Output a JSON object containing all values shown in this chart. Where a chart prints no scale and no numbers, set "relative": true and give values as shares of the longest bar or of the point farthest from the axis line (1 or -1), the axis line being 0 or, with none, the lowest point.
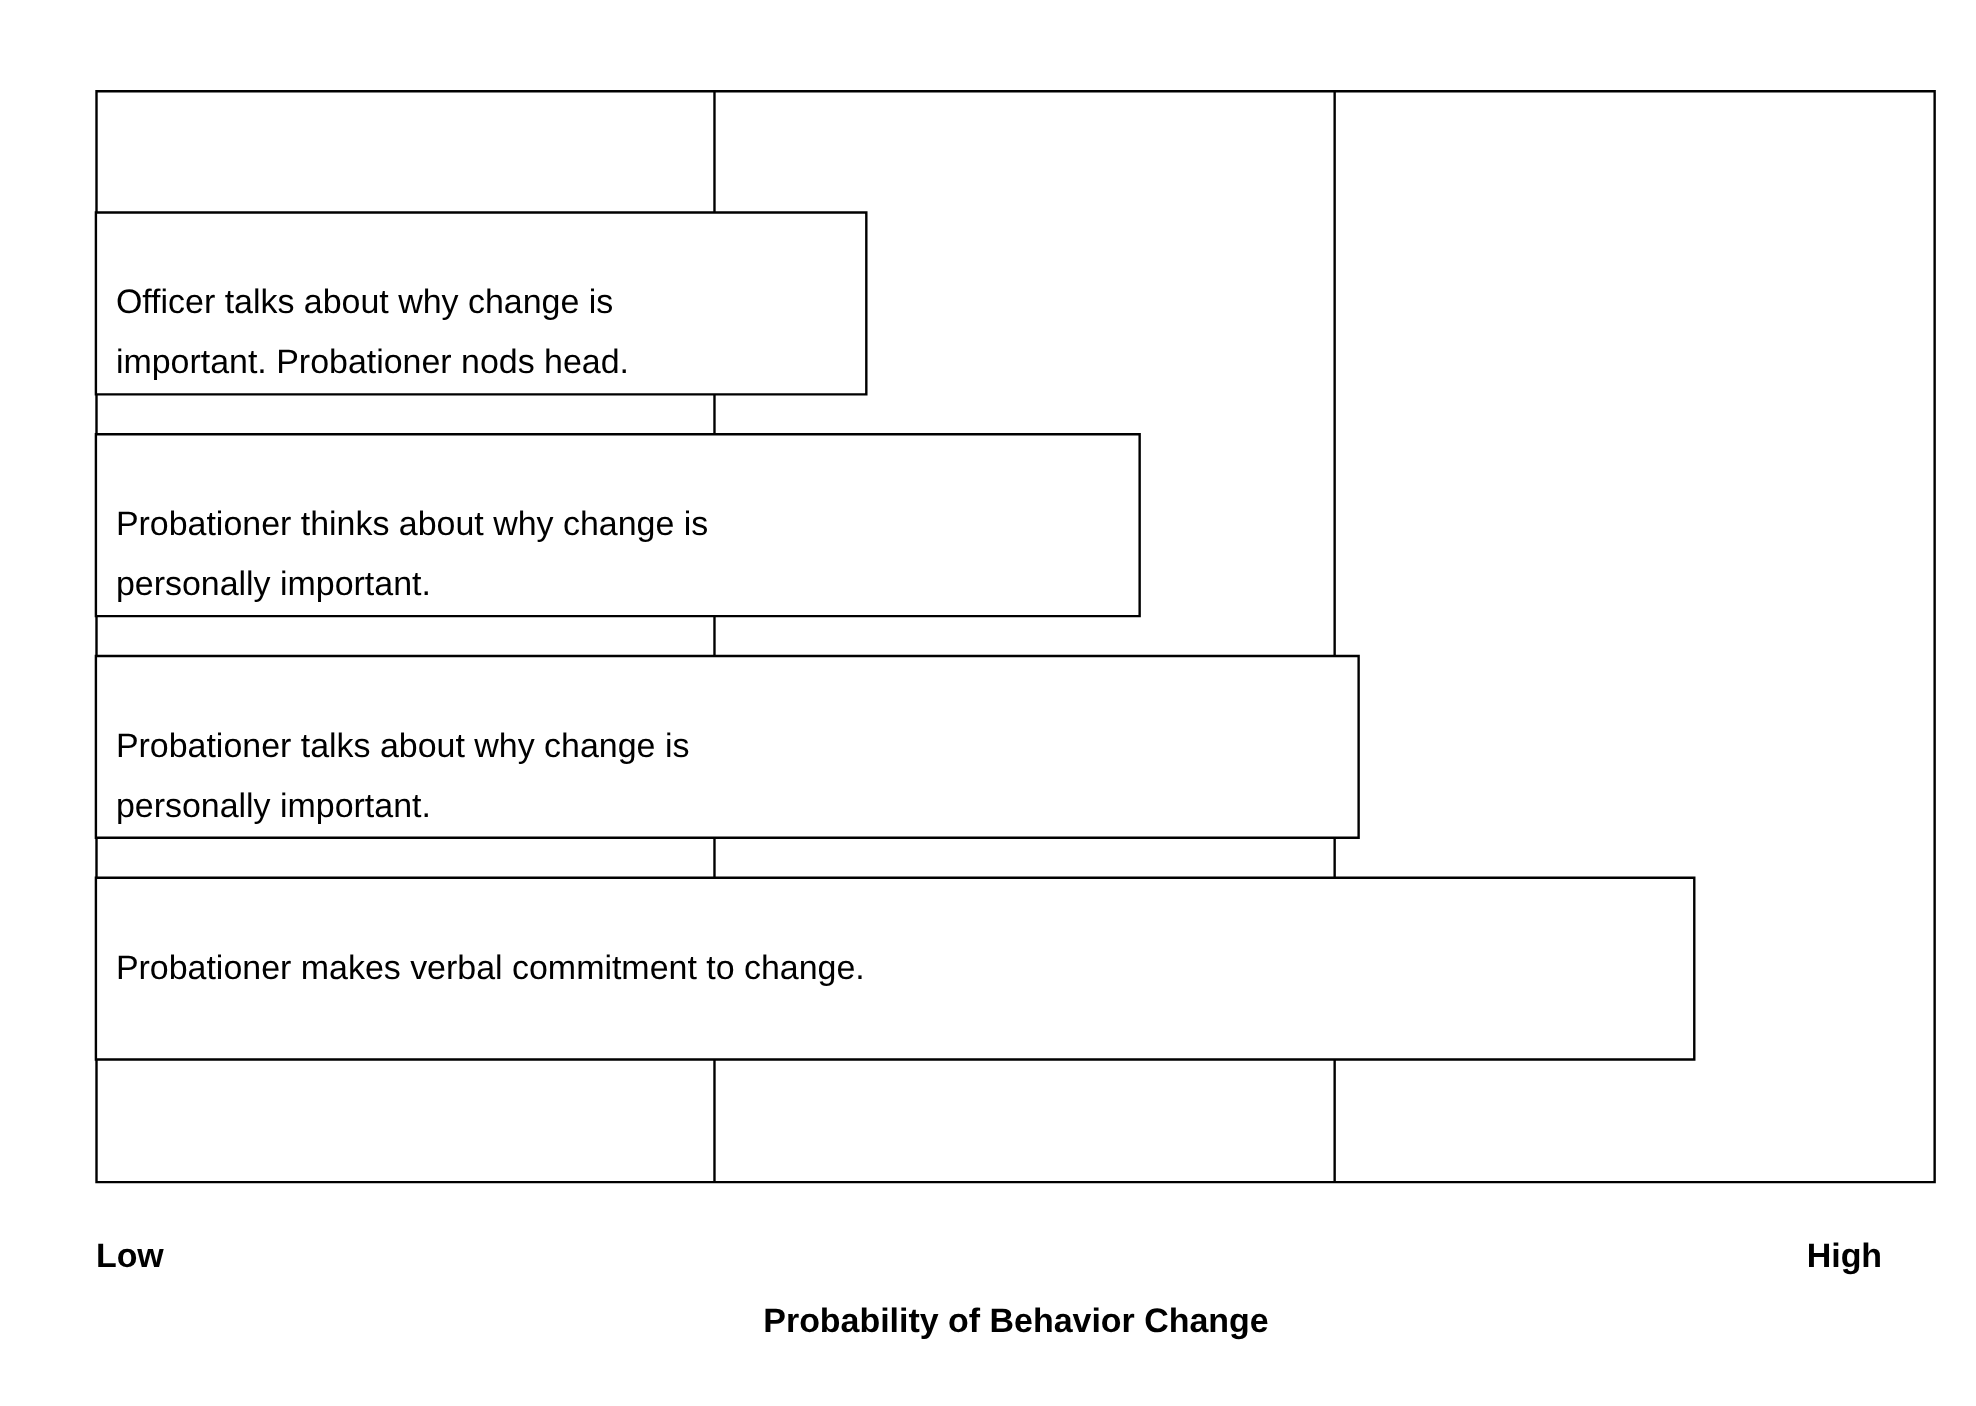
{
  "chart_data": {
    "type": "bar",
    "orientation": "horizontal",
    "relative": true,
    "categories": [
      "Officer talks about why change is important. Probationer nods head.",
      "Probationer thinks about why change is personally important.",
      "Probationer talks about why change is personally important.",
      "Probationer makes verbal commitment to change."
    ],
    "values": [
      0.482,
      0.653,
      0.79,
      1
    ],
    "color": "#ffffff",
    "xlabel": "Probability of Behavior Change",
    "annotations": [
      "Low",
      "High"
    ],
    "ref_lines": [
      {
        "axis": "x",
        "value": 0.387,
        "color": "#000000"
      },
      {
        "axis": "x",
        "value": 0.775,
        "color": "#000000"
      }
    ]
  }
}
